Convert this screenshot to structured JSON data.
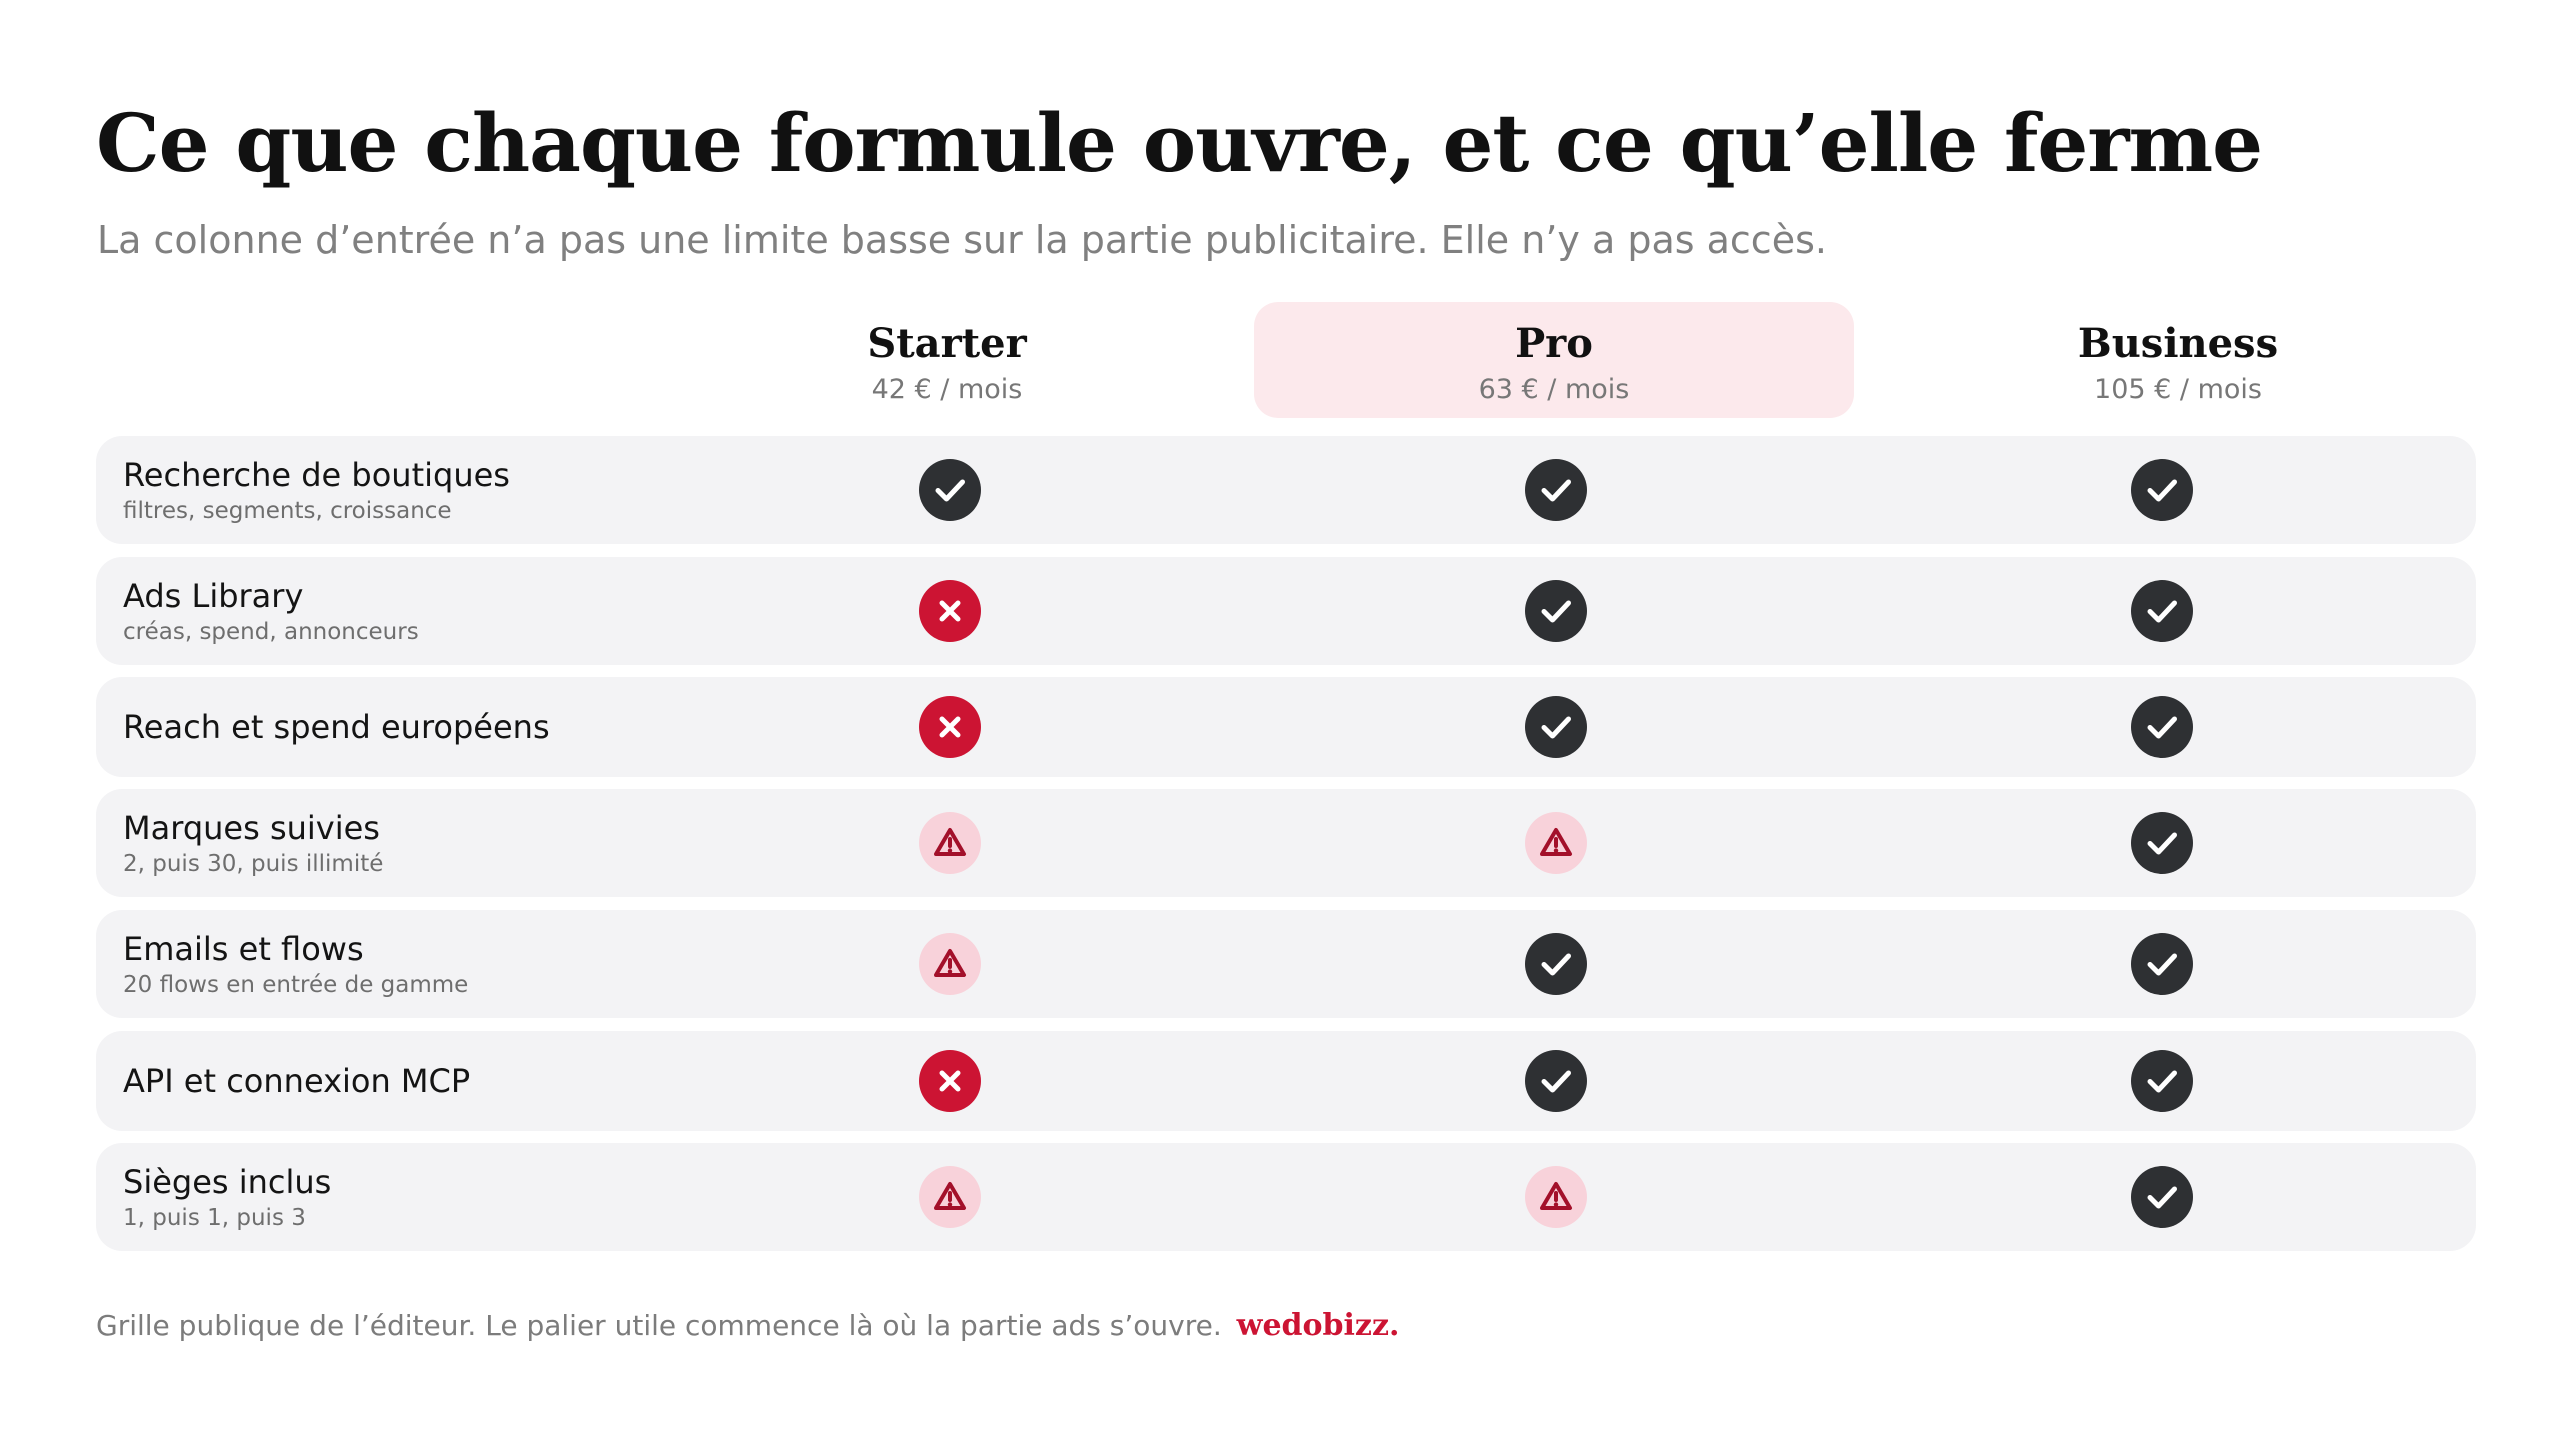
{
  "header": {
    "title": "Ce que chaque formule ouvre, et ce qu’elle ferme",
    "subtitle": "La colonne d’entrée n’a pas une limite basse sur la partie publicitaire. Elle n’y a pas accès."
  },
  "plans": [
    {
      "name": "Starter",
      "price": "42 € / mois",
      "highlighted": false
    },
    {
      "name": "Pro",
      "price": "63 € / mois",
      "highlighted": true
    },
    {
      "name": "Business",
      "price": "105 € / mois",
      "highlighted": false
    }
  ],
  "features": [
    {
      "label": "Recherche de boutiques",
      "note": "filtres, segments, croissance",
      "status": [
        "yes",
        "yes",
        "yes"
      ]
    },
    {
      "label": "Ads Library",
      "note": "créas, spend, annonceurs",
      "status": [
        "no",
        "yes",
        "yes"
      ]
    },
    {
      "label": "Reach et spend européens",
      "note": "",
      "status": [
        "no",
        "yes",
        "yes"
      ]
    },
    {
      "label": "Marques suivies",
      "note": "2, puis 30, puis illimité",
      "status": [
        "partial",
        "partial",
        "yes"
      ]
    },
    {
      "label": "Emails et flows",
      "note": "20 flows en entrée de gamme",
      "status": [
        "partial",
        "yes",
        "yes"
      ]
    },
    {
      "label": "API et connexion MCP",
      "note": "",
      "status": [
        "no",
        "yes",
        "yes"
      ]
    },
    {
      "label": "Sièges inclus",
      "note": "1, puis 1, puis 3",
      "status": [
        "partial",
        "partial",
        "yes"
      ]
    }
  ],
  "status_icons": {
    "yes": "check-icon",
    "no": "cross-icon",
    "partial": "warning-icon"
  },
  "colors": {
    "accent": "#cc1433",
    "highlight": "#fce9ec",
    "check": "#2e3033",
    "partial_bg": "#f8d2da",
    "partial_fg": "#a3102a",
    "row_bg": "#f3f3f5"
  },
  "footer": {
    "text": "Grille publique de l’éditeur. Le palier utile commence là où la partie ads s’ouvre.",
    "brand": "wedobizz."
  }
}
